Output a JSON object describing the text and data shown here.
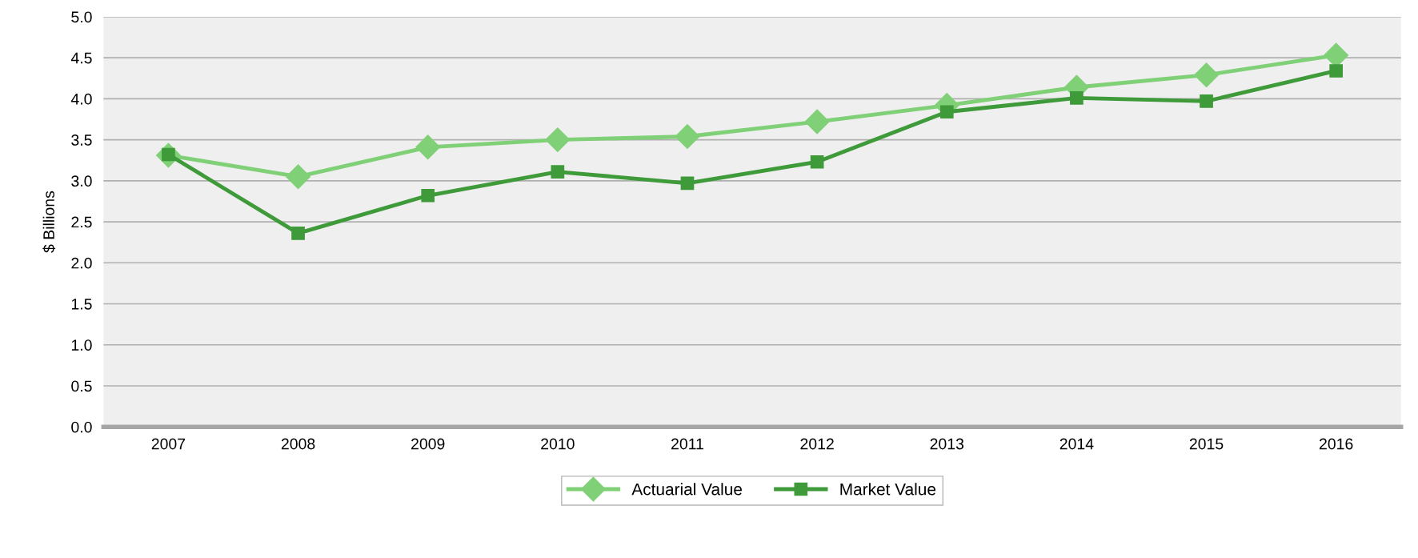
{
  "chart_data": {
    "type": "line",
    "ylabel": "$ Billions",
    "categories": [
      "2007",
      "2008",
      "2009",
      "2010",
      "2011",
      "2012",
      "2013",
      "2014",
      "2015",
      "2016"
    ],
    "series": [
      {
        "name": "Actuarial Value",
        "color": "#80d077",
        "marker": "diamond",
        "values": [
          3.31,
          3.05,
          3.41,
          3.5,
          3.54,
          3.72,
          3.92,
          4.14,
          4.29,
          4.53
        ]
      },
      {
        "name": "Market Value",
        "color": "#3f9a3a",
        "marker": "square",
        "values": [
          3.32,
          2.36,
          2.82,
          3.11,
          2.97,
          3.23,
          3.84,
          4.01,
          3.97,
          4.34
        ]
      }
    ],
    "ylim": [
      0,
      5
    ],
    "yticks": [
      {
        "value": 0,
        "label": "0.0"
      },
      {
        "value": 0.5,
        "label": "0.5"
      },
      {
        "value": 1,
        "label": "1.0"
      },
      {
        "value": 1.5,
        "label": "1.5"
      },
      {
        "value": 2,
        "label": "2.0"
      },
      {
        "value": 2.5,
        "label": "2.5"
      },
      {
        "value": 3,
        "label": "3.0"
      },
      {
        "value": 3.5,
        "label": "3.5"
      },
      {
        "value": 4,
        "label": "4.0"
      },
      {
        "value": 4.5,
        "label": "4.5"
      },
      {
        "value": 5,
        "label": "5.0"
      }
    ],
    "grid": "y",
    "legend": "bottom",
    "line_style": "solid"
  }
}
